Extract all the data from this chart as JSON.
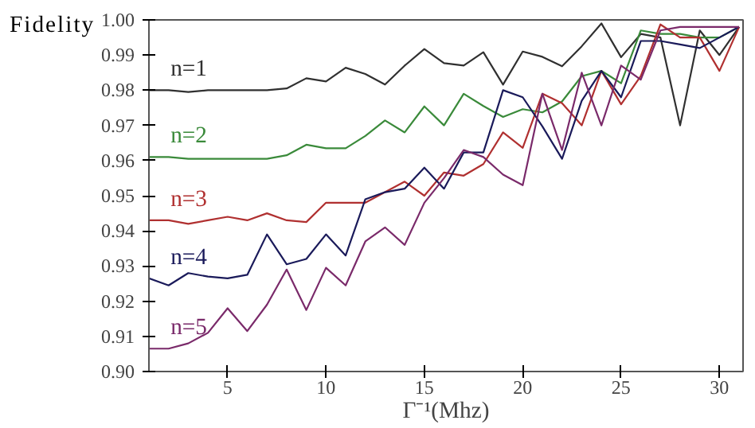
{
  "chart_data": {
    "type": "line",
    "xlabel": "Γ⁻¹(Mhz)",
    "ylabel": "Fidelity",
    "x": [
      1,
      2,
      3,
      4,
      5,
      6,
      7,
      8,
      9,
      10,
      11,
      12,
      13,
      14,
      15,
      16,
      17,
      18,
      19,
      20,
      21,
      22,
      23,
      24,
      25,
      26,
      27,
      28,
      29,
      30,
      31
    ],
    "series": [
      {
        "name": "n=1",
        "color": "#303030",
        "values": [
          0.98,
          0.98,
          0.9795,
          0.98,
          0.98,
          0.98,
          0.98,
          0.9805,
          0.9834,
          0.9825,
          0.9864,
          0.9846,
          0.9816,
          0.987,
          0.9917,
          0.9877,
          0.987,
          0.9908,
          0.9816,
          0.991,
          0.9895,
          0.9868,
          0.9925,
          0.999,
          0.9894,
          0.996,
          0.995,
          0.97,
          0.997,
          0.99,
          0.998
        ]
      },
      {
        "name": "n=2",
        "color": "#3a8a3a",
        "values": [
          0.961,
          0.961,
          0.9605,
          0.9605,
          0.9605,
          0.9605,
          0.9605,
          0.9615,
          0.9645,
          0.9635,
          0.9635,
          0.967,
          0.9714,
          0.968,
          0.9754,
          0.97,
          0.979,
          0.9755,
          0.9724,
          0.9746,
          0.9737,
          0.9768,
          0.984,
          0.9855,
          0.982,
          0.997,
          0.996,
          0.996,
          0.995,
          0.995,
          0.998
        ]
      },
      {
        "name": "n=3",
        "color": "#b03030",
        "values": [
          0.943,
          0.943,
          0.942,
          0.943,
          0.944,
          0.943,
          0.945,
          0.943,
          0.9425,
          0.948,
          0.948,
          0.948,
          0.951,
          0.954,
          0.95,
          0.9566,
          0.9557,
          0.959,
          0.968,
          0.9636,
          0.979,
          0.9763,
          0.97,
          0.9855,
          0.976,
          0.984,
          0.9987,
          0.995,
          0.995,
          0.9855,
          0.998
        ]
      },
      {
        "name": "n=4",
        "color": "#1a1a5a",
        "values": [
          0.9265,
          0.9245,
          0.928,
          0.927,
          0.9265,
          0.9275,
          0.939,
          0.9305,
          0.932,
          0.939,
          0.933,
          0.949,
          0.951,
          0.952,
          0.958,
          0.952,
          0.9623,
          0.9623,
          0.98,
          0.978,
          0.9697,
          0.9605,
          0.977,
          0.9855,
          0.978,
          0.994,
          0.994,
          0.993,
          0.992,
          0.995,
          0.998
        ]
      },
      {
        "name": "n=5",
        "color": "#7a2a6a",
        "values": [
          0.9065,
          0.9065,
          0.908,
          0.911,
          0.918,
          0.9115,
          0.919,
          0.929,
          0.9175,
          0.9295,
          0.9245,
          0.937,
          0.941,
          0.936,
          0.948,
          0.955,
          0.963,
          0.961,
          0.956,
          0.953,
          0.979,
          0.963,
          0.985,
          0.97,
          0.987,
          0.983,
          0.997,
          0.998,
          0.998,
          0.998,
          0.998
        ]
      }
    ],
    "xlim": [
      1,
      31.2
    ],
    "xticks": [
      5,
      10,
      15,
      20,
      25,
      30
    ],
    "ylim": [
      0.9,
      1.0
    ],
    "yticks": [
      {
        "value": 0.9,
        "label": "0.90"
      },
      {
        "value": 0.91,
        "label": "0.91"
      },
      {
        "value": 0.92,
        "label": "0.92"
      },
      {
        "value": 0.93,
        "label": "0.93"
      },
      {
        "value": 0.94,
        "label": "0.94"
      },
      {
        "value": 0.95,
        "label": "0.95"
      },
      {
        "value": 0.96,
        "label": "0.96"
      },
      {
        "value": 0.97,
        "label": "0.97"
      },
      {
        "value": 0.98,
        "label": "0.98"
      },
      {
        "value": 0.99,
        "label": "0.99"
      },
      {
        "value": 1.0,
        "label": "1.00"
      }
    ],
    "grid": false,
    "legend": false
  }
}
